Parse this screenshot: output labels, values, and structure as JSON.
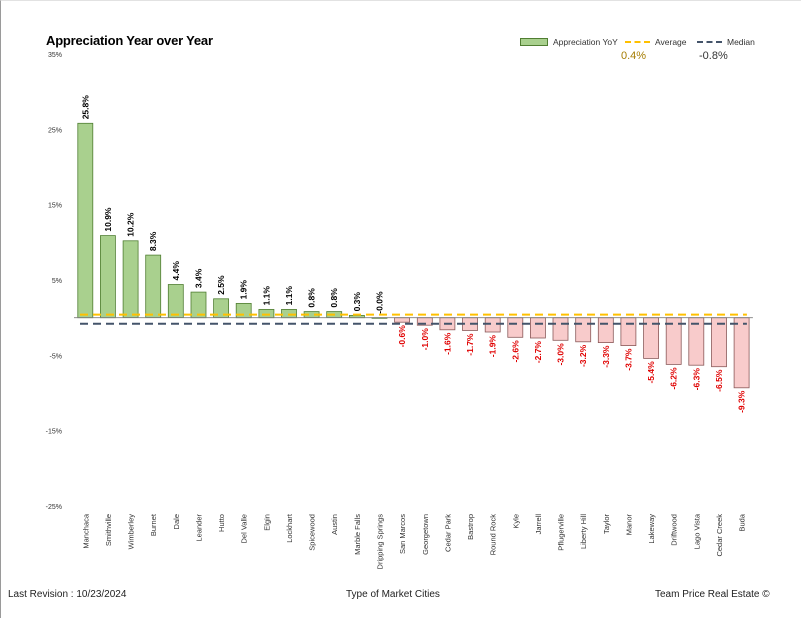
{
  "chart_data": {
    "type": "bar",
    "title": "Appreciation Year over Year",
    "categories": [
      "Manchaca",
      "Smithville",
      "Wimberley",
      "Burnet",
      "Dale",
      "Leander",
      "Hutto",
      "Del Valle",
      "Elgin",
      "Lockhart",
      "Spicewood",
      "Austin",
      "Marble Falls",
      "Dripping Springs",
      "San Marcos",
      "Georgetown",
      "Cedar Park",
      "Bastrop",
      "Round Rock",
      "Kyle",
      "Jarrell",
      "Pflugerville",
      "Liberty Hill",
      "Taylor",
      "Manor",
      "Lakeway",
      "Driftwood",
      "Lago Vista",
      "Cedar Creek",
      "Buda"
    ],
    "series": [
      {
        "name": "Appreciation YoY",
        "values": [
          25.8,
          10.9,
          10.2,
          8.3,
          4.4,
          3.4,
          2.5,
          1.9,
          1.1,
          1.1,
          0.8,
          0.8,
          0.3,
          -0.0,
          -0.6,
          -1.0,
          -1.6,
          -1.7,
          -1.9,
          -2.6,
          -2.7,
          -3.0,
          -3.2,
          -3.3,
          -3.7,
          -5.4,
          -6.2,
          -6.3,
          -6.5,
          -9.3
        ],
        "labels": [
          "25.8%",
          "10.9%",
          "10.2%",
          "8.3%",
          "4.4%",
          "3.4%",
          "2.5%",
          "1.9%",
          "1.1%",
          "1.1%",
          "0.8%",
          "0.8%",
          "0.3%",
          "-0.0%",
          "-0.6%",
          "-1.0%",
          "-1.6%",
          "-1.7%",
          "-1.9%",
          "-2.6%",
          "-2.7%",
          "-3.0%",
          "-3.2%",
          "-3.3%",
          "-3.7%",
          "-5.4%",
          "-6.2%",
          "-6.3%",
          "-6.5%",
          "-9.3%"
        ]
      }
    ],
    "reference_lines": [
      {
        "name": "Average",
        "value": 0.4,
        "label": "0.4%",
        "color": "#ffc000"
      },
      {
        "name": "Median",
        "value": -0.8,
        "label": "-0.8%",
        "color": "#44546a"
      }
    ],
    "ylim": [
      -25,
      35
    ],
    "y_ticks": [
      35,
      25,
      15,
      5,
      -5,
      -15,
      -25
    ],
    "y_tick_labels": [
      "35%",
      "25%",
      "15%",
      "5%",
      "-5%",
      "-15%",
      "-25%"
    ],
    "grid": false,
    "legend_position": "top-right",
    "colors": {
      "positive_fill": "#a9d08e",
      "positive_stroke": "#507e32",
      "negative_fill": "#f8cbcb",
      "negative_stroke": "#8a5a5a",
      "positive_label": "#000000",
      "negative_label": "#e00000"
    }
  },
  "footer": {
    "revision": "Last Revision : 10/23/2024",
    "center": "Type of Market Cities",
    "credit": "Team Price Real Estate ©"
  }
}
